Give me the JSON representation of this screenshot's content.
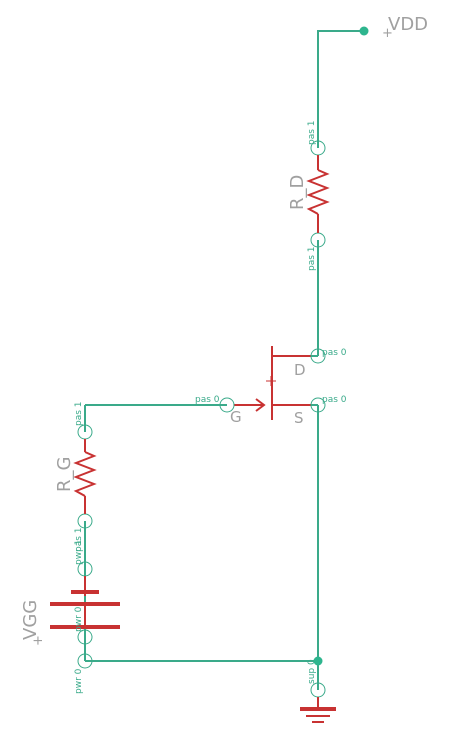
{
  "labels": {
    "vdd": "VDD",
    "vgg": "VGG",
    "rd": "R_D",
    "rg": "R_G",
    "drain": "D",
    "gate": "G",
    "source": "S",
    "plus": "+"
  },
  "pins": {
    "rd_top": "pas 1",
    "rd_bottom": "pas 1",
    "mos_drain": "pas 0",
    "mos_source": "pas 0",
    "mos_gate": "pas 0",
    "rg_top": "pas 1",
    "rg_bottom": "pas 1",
    "vgg_top": "pwr 1",
    "vgg_bottom": "pwr 0",
    "vgg_mid": "pwr 0",
    "gnd": "sup 0"
  },
  "colors": {
    "wire": "#3aaa8a",
    "component": "#c83232",
    "label": "#a0a0a0",
    "junction": "#2eb58e"
  }
}
